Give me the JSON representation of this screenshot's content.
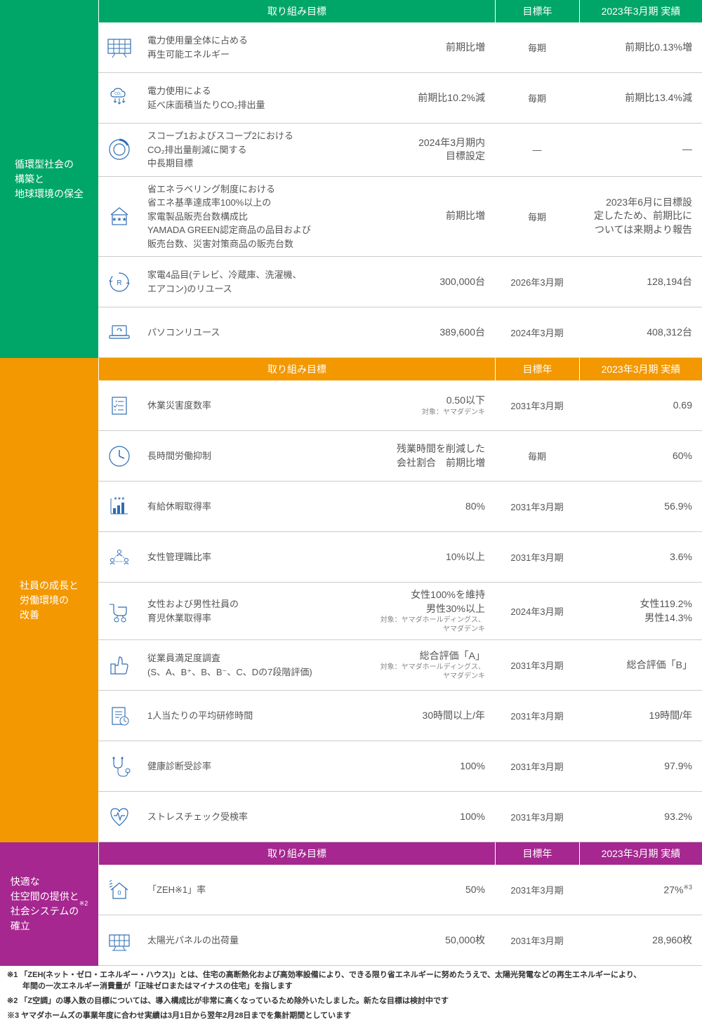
{
  "colors": {
    "green": "#00a668",
    "orange": "#f39800",
    "purple": "#a5278f",
    "icon_blue": "#2e6eb5",
    "text": "#555555",
    "border": "#cccccc"
  },
  "headers": {
    "target": "取り組み目標",
    "year": "目標年",
    "result": "2023年3月期 実績"
  },
  "sections": [
    {
      "id": "env",
      "color": "green",
      "category": "循環型社会の\n構築と\n地球環境の保全",
      "rows": [
        {
          "icon": "solar-panel",
          "desc": "電力使用量全体に占める\n再生可能エネルギー",
          "target": "前期比増",
          "year": "毎期",
          "result": "前期比0.13%増"
        },
        {
          "icon": "co2-cloud",
          "desc": "電力使用による\n延べ床面積当たりCO₂排出量",
          "target": "前期比10.2%減",
          "year": "毎期",
          "result": "前期比13.4%減"
        },
        {
          "icon": "donut",
          "desc": "スコープ1およびスコープ2における\nCO₂排出量削減に関する\n中長期目標",
          "target": "2024年3月期内\n目標設定",
          "year": "—",
          "result": "—"
        },
        {
          "icon": "house-stars",
          "desc": "省エネラベリング制度における\n省エネ基準達成率100%以上の\n家電製品販売台数構成比\nYAMADA GREEN認定商品の品目および\n販売台数、災害対策商品の販売台数",
          "target": "前期比増",
          "year": "毎期",
          "result": "2023年6月に目標設\n定したため、前期比に\nついては来期より報告"
        },
        {
          "icon": "recycle-r",
          "desc": "家電4品目(テレビ、冷蔵庫、洗濯機、\nエアコン)のリユース",
          "target": "300,000台",
          "year": "2026年3月期",
          "result": "128,194台"
        },
        {
          "icon": "laptop-recycle",
          "desc": "パソコンリユース",
          "target": "389,600台",
          "year": "2024年3月期",
          "result": "408,312台"
        }
      ]
    },
    {
      "id": "labor",
      "color": "orange",
      "category": "社員の成長と\n労働環境の\n改善",
      "rows": [
        {
          "icon": "checklist",
          "desc": "休業災害度数率",
          "target": "0.50以下",
          "target_sub": "対象：ヤマダデンキ",
          "year": "2031年3月期",
          "result": "0.69"
        },
        {
          "icon": "clock",
          "desc": "長時間労働抑制",
          "target": "残業時間を削減した\n会社割合　前期比増",
          "year": "毎期",
          "result": "60%"
        },
        {
          "icon": "bar-chart",
          "desc": "有給休暇取得率",
          "target": "80%",
          "year": "2031年3月期",
          "result": "56.9%"
        },
        {
          "icon": "people-network",
          "desc": "女性管理職比率",
          "target": "10%以上",
          "year": "2031年3月期",
          "result": "3.6%"
        },
        {
          "icon": "stroller",
          "desc": "女性および男性社員の\n育児休業取得率",
          "target": "女性100%を維持\n男性30%以上",
          "target_sub": "対象：ヤマダホールディングス、\nヤマダデンキ",
          "year": "2024年3月期",
          "result": "女性119.2%\n男性14.3%"
        },
        {
          "icon": "thumbs-up",
          "desc": "従業員満足度調査\n(S、A、B⁺、B、B⁻、C、Dの7段階評価)",
          "target": "総合評価「A」",
          "target_sub": "対象：ヤマダホールディングス、\nヤマダデンキ",
          "year": "2031年3月期",
          "result": "総合評価「B」"
        },
        {
          "icon": "doc-clock",
          "desc": "1人当たりの平均研修時間",
          "target": "30時間以上/年",
          "year": "2031年3月期",
          "result": "19時間/年"
        },
        {
          "icon": "stethoscope",
          "desc": "健康診断受診率",
          "target": "100%",
          "year": "2031年3月期",
          "result": "97.9%"
        },
        {
          "icon": "heart-pulse",
          "desc": "ストレスチェック受検率",
          "target": "100%",
          "year": "2031年3月期",
          "result": "93.2%"
        }
      ]
    },
    {
      "id": "living",
      "color": "purple",
      "category": "快適な\n住空間の提供と\n社会システムの\n確立",
      "category_sup": "※2",
      "rows": [
        {
          "icon": "zeh-house",
          "desc": "「ZEH※1」率",
          "desc_sup": "※1",
          "target": "50%",
          "year": "2031年3月期",
          "result": "27%",
          "result_sup": "※3"
        },
        {
          "icon": "solar-panel2",
          "desc": "太陽光パネルの出荷量",
          "target": "50,000枚",
          "year": "2031年3月期",
          "result": "28,960枚"
        }
      ]
    }
  ],
  "footnotes": [
    "※1 「ZEH(ネット・ゼロ・エネルギー・ハウス)」とは、住宅の高断熱化および高効率設備により、できる限り省エネルギーに努めたうえで、太陽光発電などの再生エネルギーにより、\n　　年間の一次エネルギー消費量が「正味ゼロまたはマイナスの住宅」を指します",
    "※2 「Z空調」の導入数の目標については、導入構成比が非常に高くなっているため除外いたしました。新たな目標は検討中です",
    "※3 ヤマダホームズの事業年度に合わせ実績は3月1日から翌年2月28日までを集計期間としています"
  ]
}
